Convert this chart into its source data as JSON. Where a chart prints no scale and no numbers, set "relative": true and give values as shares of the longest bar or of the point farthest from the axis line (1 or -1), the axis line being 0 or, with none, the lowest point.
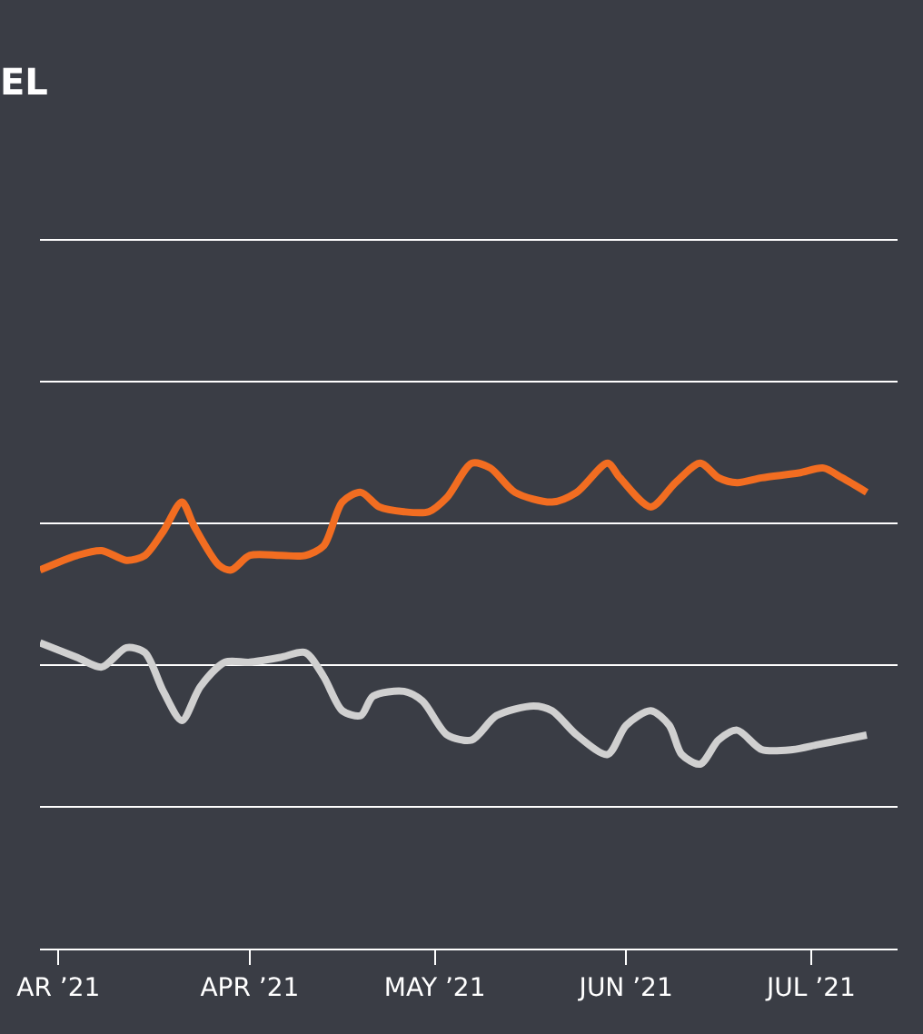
{
  "chart_data": {
    "type": "line",
    "title": "EL",
    "relative": true,
    "grid": "y",
    "line_style": "solid",
    "marker": "none",
    "xlim": [
      "2021-02-26",
      "2021-07-15"
    ],
    "xticks": [
      {
        "value": "2021-03-01",
        "label": "AR ’21"
      },
      {
        "value": "2021-04-01",
        "label": "APR ’21"
      },
      {
        "value": "2021-05-01",
        "label": "MAY ’21"
      },
      {
        "value": "2021-06-01",
        "label": "JUN ’21"
      },
      {
        "value": "2021-07-01",
        "label": "JUL ’21"
      }
    ],
    "series": [
      {
        "color": "#f26d21",
        "x": [
          "2021-02-26",
          "2021-03-04",
          "2021-03-08",
          "2021-03-12",
          "2021-03-15",
          "2021-03-18",
          "2021-03-21",
          "2021-03-23",
          "2021-03-27",
          "2021-03-29",
          "2021-04-01",
          "2021-04-06",
          "2021-04-10",
          "2021-04-13",
          "2021-04-16",
          "2021-04-19",
          "2021-04-22",
          "2021-04-26",
          "2021-04-30",
          "2021-05-03",
          "2021-05-07",
          "2021-05-10",
          "2021-05-14",
          "2021-05-20",
          "2021-05-24",
          "2021-05-29",
          "2021-05-31",
          "2021-06-05",
          "2021-06-09",
          "2021-06-13",
          "2021-06-16",
          "2021-06-19",
          "2021-06-23",
          "2021-06-29",
          "2021-07-03",
          "2021-07-06",
          "2021-07-10"
        ],
        "values": [
          0.78,
          0.81,
          0.82,
          0.8,
          0.81,
          0.86,
          0.92,
          0.87,
          0.79,
          0.78,
          0.81,
          0.81,
          0.81,
          0.83,
          0.92,
          0.94,
          0.91,
          0.9,
          0.9,
          0.93,
          1.0,
          0.99,
          0.94,
          0.92,
          0.94,
          1.0,
          0.97,
          0.91,
          0.96,
          1.0,
          0.97,
          0.96,
          0.97,
          0.98,
          0.99,
          0.97,
          0.94
        ]
      },
      {
        "color": "#d0d0d0",
        "x": [
          "2021-02-26",
          "2021-03-04",
          "2021-03-08",
          "2021-03-12",
          "2021-03-15",
          "2021-03-18",
          "2021-03-21",
          "2021-03-24",
          "2021-03-28",
          "2021-04-01",
          "2021-04-06",
          "2021-04-10",
          "2021-04-13",
          "2021-04-16",
          "2021-04-19",
          "2021-04-21",
          "2021-04-26",
          "2021-04-29",
          "2021-05-03",
          "2021-05-07",
          "2021-05-11",
          "2021-05-17",
          "2021-05-20",
          "2021-05-24",
          "2021-05-29",
          "2021-06-01",
          "2021-06-05",
          "2021-06-08",
          "2021-06-10",
          "2021-06-13",
          "2021-06-16",
          "2021-06-19",
          "2021-06-23",
          "2021-06-28",
          "2021-07-02",
          "2021-07-06",
          "2021-07-10"
        ],
        "values": [
          0.63,
          0.6,
          0.58,
          0.62,
          0.61,
          0.53,
          0.47,
          0.54,
          0.59,
          0.59,
          0.6,
          0.61,
          0.56,
          0.49,
          0.48,
          0.52,
          0.53,
          0.51,
          0.44,
          0.43,
          0.48,
          0.5,
          0.49,
          0.44,
          0.4,
          0.46,
          0.49,
          0.46,
          0.4,
          0.38,
          0.43,
          0.45,
          0.41,
          0.41,
          0.42,
          0.43,
          0.44
        ]
      }
    ]
  }
}
